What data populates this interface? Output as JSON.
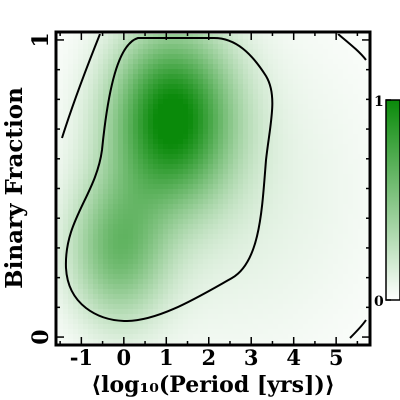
{
  "chart_data": {
    "type": "heatmap",
    "title": "",
    "xlabel": "⟨log₁₀(Period [yrs])⟩",
    "ylabel": "Binary Fraction",
    "xlim": [
      -1.55,
      5.75
    ],
    "ylim": [
      -0.02,
      1.02
    ],
    "x_ticks": [
      "-1",
      "0",
      "1",
      "2",
      "3",
      "4",
      "5"
    ],
    "x_tick_values": [
      -1,
      0,
      1,
      2,
      3,
      4,
      5
    ],
    "y_ticks": [
      "0",
      "1"
    ],
    "y_tick_values": [
      0,
      1
    ],
    "colorbar": {
      "min_label": "0",
      "max_label": "1",
      "min": 0,
      "max": 1,
      "color": "#0a8a0a"
    },
    "density_peak": {
      "x": 1.1,
      "y": 0.75
    },
    "contour_levels": 2,
    "grid": false
  }
}
